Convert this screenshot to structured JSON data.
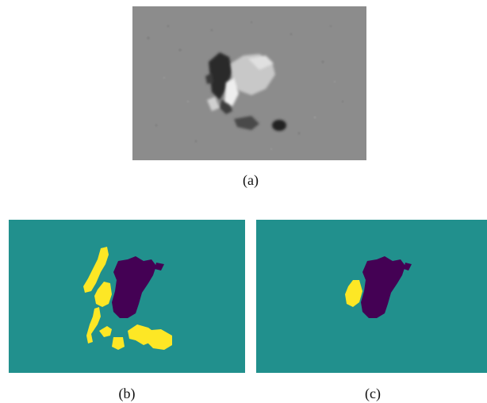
{
  "figure": {
    "panels": [
      {
        "id": "a",
        "caption": "(a)"
      },
      {
        "id": "b",
        "caption": "(b)"
      },
      {
        "id": "c",
        "caption": "(c)"
      }
    ]
  },
  "colors": {
    "magnetogram_background": "#8a8a8a",
    "mask_background": "#21908d",
    "mask_positive": "#fde725",
    "mask_negative": "#440154"
  }
}
